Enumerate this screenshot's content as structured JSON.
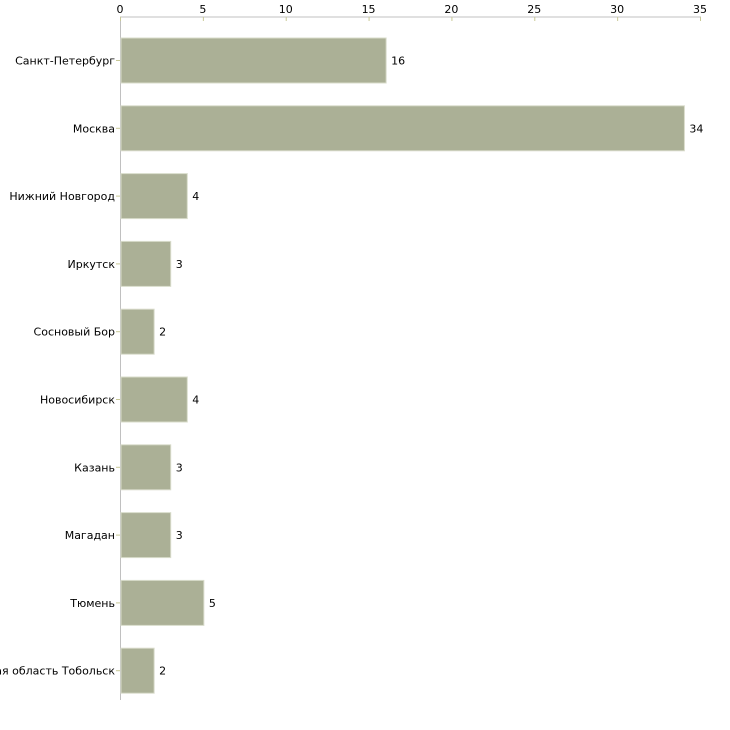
{
  "chart_data": {
    "type": "bar",
    "orientation": "horizontal",
    "title": "",
    "xlabel": "",
    "ylabel": "",
    "xlim": [
      0,
      35
    ],
    "ticks": [
      0,
      5,
      10,
      15,
      20,
      25,
      30,
      35
    ],
    "tick_labels": [
      "0",
      "5",
      "10",
      "15",
      "20",
      "25",
      "30",
      "35"
    ],
    "axis_position": "top",
    "grid": false,
    "categories": [
      "Санкт-Петербург",
      "Москва",
      "Нижний Новгород",
      "Иркутск",
      "Сосновый Бор",
      "Новосибирск",
      "Казань",
      "Магадан",
      "Тюмень",
      "Тюменская область Тобольск"
    ],
    "values": [
      16,
      34,
      4,
      3,
      2,
      4,
      3,
      3,
      5,
      2
    ],
    "data_labels": [
      "16",
      "34",
      "4",
      "3",
      "2",
      "4",
      "3",
      "3",
      "5",
      "2"
    ],
    "colors": {
      "bar": "#abb096",
      "bar_edge": "#d9dccb",
      "axis": "#c0c0c0",
      "tick": "#c8c896"
    }
  }
}
